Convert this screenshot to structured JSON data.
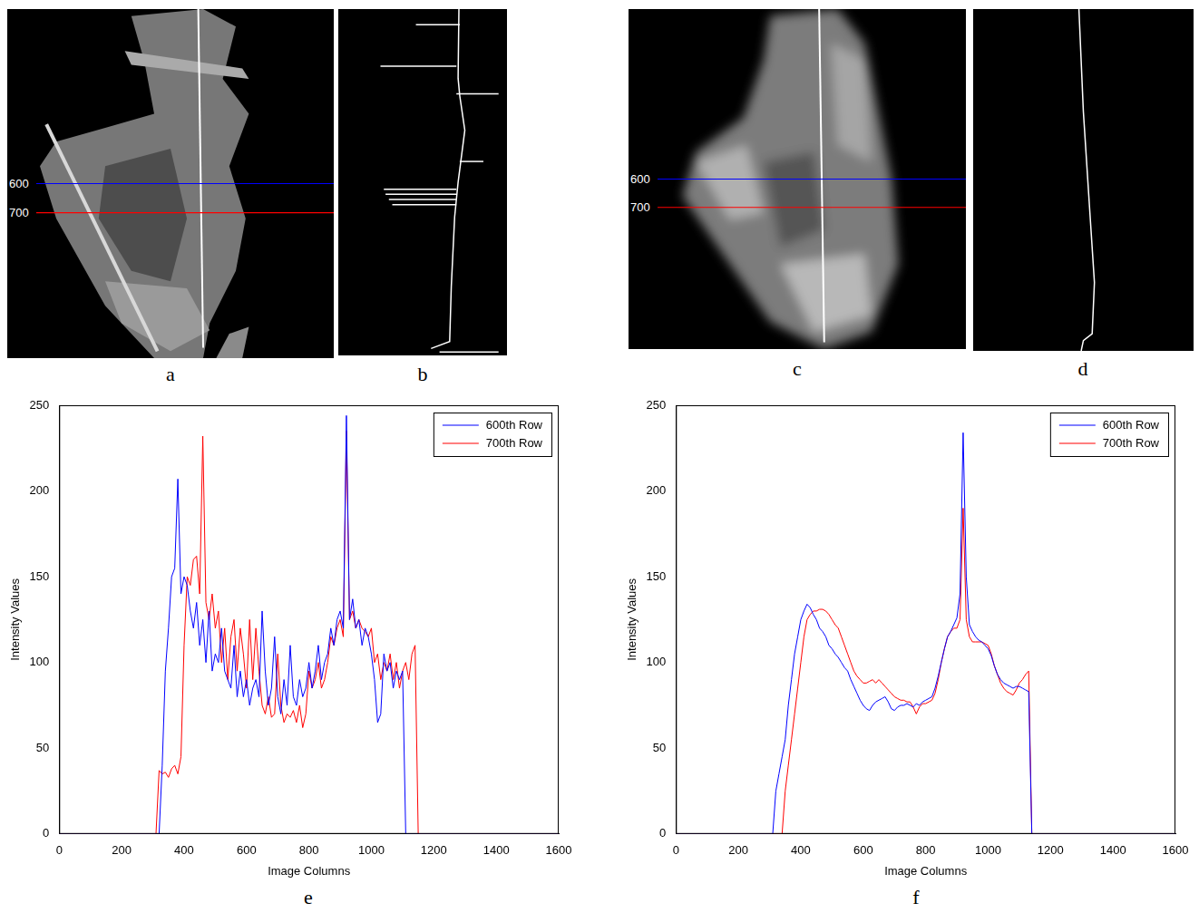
{
  "images": [
    {
      "panel": "a",
      "kind": "photo",
      "rows": 1200,
      "row_lines": [
        {
          "row": 600,
          "color": "#0000ff"
        },
        {
          "row": 700,
          "color": "#ff0000"
        }
      ]
    },
    {
      "panel": "b",
      "kind": "edge_noisy"
    },
    {
      "panel": "c",
      "kind": "smoothed",
      "rows": 1200,
      "row_lines": [
        {
          "row": 600,
          "color": "#0000ff"
        },
        {
          "row": 700,
          "color": "#ff0000"
        }
      ]
    },
    {
      "panel": "d",
      "kind": "edge_clean"
    }
  ],
  "chart_data": [
    {
      "panel": "e",
      "type": "line",
      "x_label": "Image Columns",
      "y_label": "Intensity Values",
      "x": [
        0,
        300,
        310,
        320,
        330,
        340,
        350,
        360,
        370,
        380,
        390,
        400,
        410,
        420,
        430,
        440,
        450,
        460,
        470,
        480,
        490,
        500,
        510,
        520,
        530,
        540,
        550,
        560,
        570,
        580,
        590,
        600,
        610,
        620,
        630,
        640,
        650,
        660,
        670,
        680,
        690,
        700,
        710,
        720,
        730,
        740,
        750,
        760,
        770,
        780,
        790,
        800,
        810,
        820,
        830,
        840,
        850,
        860,
        870,
        880,
        890,
        900,
        910,
        920,
        930,
        940,
        950,
        960,
        970,
        980,
        990,
        1000,
        1010,
        1020,
        1030,
        1040,
        1050,
        1060,
        1070,
        1080,
        1090,
        1100,
        1110,
        1120,
        1130,
        1140,
        1150,
        1600
      ],
      "series": [
        {
          "name": "600th Row",
          "color": "#0000ff",
          "values": [
            0,
            0,
            0,
            0,
            40,
            95,
            120,
            150,
            155,
            207,
            140,
            150,
            145,
            130,
            120,
            135,
            110,
            125,
            100,
            130,
            95,
            105,
            100,
            120,
            95,
            90,
            85,
            110,
            80,
            95,
            80,
            90,
            75,
            85,
            90,
            80,
            130,
            95,
            75,
            85,
            115,
            80,
            70,
            90,
            75,
            110,
            80,
            75,
            90,
            80,
            85,
            100,
            85,
            95,
            110,
            90,
            100,
            105,
            120,
            110,
            125,
            130,
            120,
            244,
            125,
            137,
            120,
            125,
            110,
            120,
            115,
            105,
            90,
            65,
            70,
            105,
            95,
            100,
            85,
            95,
            90,
            95,
            0,
            0,
            0,
            0,
            0,
            0
          ]
        },
        {
          "name": "700th Row",
          "color": "#ff0000",
          "values": [
            0,
            0,
            0,
            37,
            35,
            36,
            33,
            38,
            40,
            35,
            45,
            110,
            150,
            145,
            160,
            162,
            140,
            232,
            135,
            125,
            140,
            120,
            130,
            100,
            120,
            90,
            115,
            125,
            95,
            120,
            105,
            85,
            125,
            90,
            120,
            95,
            75,
            70,
            80,
            68,
            70,
            105,
            75,
            65,
            70,
            68,
            72,
            65,
            75,
            62,
            70,
            95,
            85,
            90,
            100,
            85,
            90,
            100,
            115,
            110,
            120,
            125,
            115,
            235,
            125,
            130,
            120,
            125,
            120,
            118,
            115,
            120,
            100,
            105,
            90,
            100,
            95,
            105,
            90,
            100,
            85,
            95,
            100,
            90,
            105,
            110,
            0,
            0
          ]
        }
      ],
      "xlim": [
        0,
        1600
      ],
      "xticks": [
        0,
        200,
        400,
        600,
        800,
        1000,
        1200,
        1400,
        1600
      ],
      "ylim": [
        0,
        250
      ],
      "yticks": [
        0,
        50,
        100,
        150,
        200,
        250
      ],
      "grid": false,
      "legend": "upper right"
    },
    {
      "panel": "f",
      "type": "line",
      "x_label": "Image Columns",
      "y_label": "Intensity Values",
      "x": [
        0,
        300,
        310,
        320,
        330,
        340,
        350,
        360,
        370,
        380,
        390,
        400,
        410,
        420,
        430,
        440,
        450,
        460,
        470,
        480,
        490,
        500,
        510,
        520,
        530,
        540,
        550,
        560,
        570,
        580,
        590,
        600,
        610,
        620,
        630,
        640,
        650,
        660,
        670,
        680,
        690,
        700,
        710,
        720,
        730,
        740,
        750,
        760,
        770,
        780,
        790,
        800,
        810,
        820,
        830,
        840,
        850,
        860,
        870,
        880,
        890,
        900,
        910,
        920,
        930,
        940,
        950,
        960,
        970,
        980,
        990,
        1000,
        1010,
        1020,
        1030,
        1040,
        1050,
        1060,
        1070,
        1080,
        1090,
        1100,
        1110,
        1120,
        1130,
        1140,
        1150,
        1600
      ],
      "series": [
        {
          "name": "600th Row",
          "color": "#0000ff",
          "values": [
            0,
            0,
            0,
            25,
            35,
            45,
            55,
            75,
            90,
            105,
            115,
            125,
            130,
            134,
            132,
            128,
            125,
            120,
            118,
            115,
            110,
            108,
            105,
            103,
            100,
            97,
            95,
            90,
            86,
            82,
            78,
            75,
            73,
            72,
            75,
            77,
            78,
            79,
            80,
            77,
            73,
            72,
            74,
            75,
            75,
            76,
            75,
            74,
            76,
            75,
            77,
            78,
            79,
            80,
            85,
            92,
            100,
            108,
            115,
            118,
            122,
            126,
            140,
            234,
            150,
            122,
            118,
            115,
            113,
            112,
            110,
            108,
            104,
            98,
            93,
            90,
            88,
            87,
            86,
            85,
            86,
            86,
            85,
            84,
            83,
            0,
            0,
            0
          ]
        },
        {
          "name": "700th Row",
          "color": "#ff0000",
          "values": [
            0,
            0,
            0,
            0,
            0,
            0,
            25,
            40,
            55,
            70,
            85,
            100,
            115,
            125,
            128,
            130,
            130,
            131,
            131,
            130,
            128,
            125,
            122,
            120,
            115,
            110,
            105,
            100,
            95,
            92,
            90,
            88,
            88,
            89,
            90,
            88,
            90,
            88,
            86,
            84,
            82,
            80,
            79,
            78,
            78,
            77,
            77,
            74,
            70,
            74,
            76,
            76,
            77,
            78,
            82,
            90,
            100,
            108,
            115,
            118,
            120,
            120,
            125,
            190,
            125,
            115,
            112,
            112,
            112,
            112,
            111,
            110,
            105,
            98,
            93,
            88,
            85,
            83,
            82,
            81,
            84,
            88,
            90,
            93,
            95,
            0,
            0,
            0
          ]
        }
      ],
      "xlim": [
        0,
        1600
      ],
      "xticks": [
        0,
        200,
        400,
        600,
        800,
        1000,
        1200,
        1400,
        1600
      ],
      "ylim": [
        0,
        250
      ],
      "yticks": [
        0,
        50,
        100,
        150,
        200,
        250
      ],
      "grid": false,
      "legend": "upper right"
    }
  ]
}
